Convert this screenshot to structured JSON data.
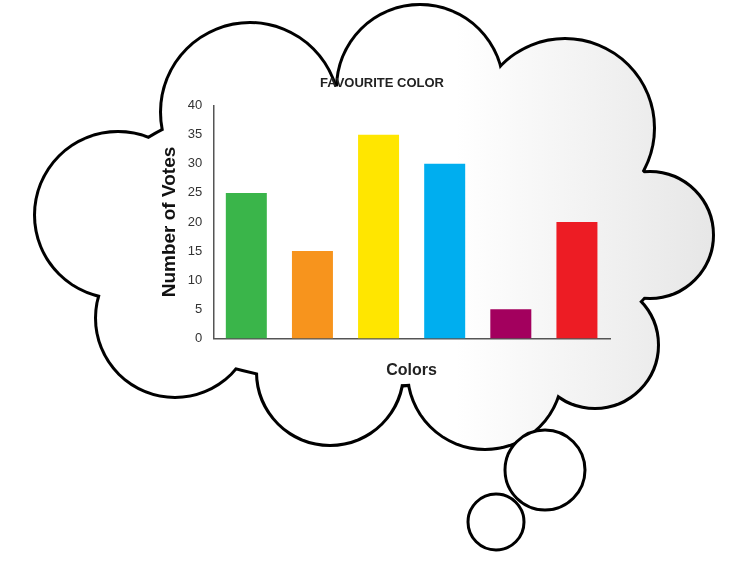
{
  "chart_data": {
    "type": "bar",
    "title": "FAVOURITE COLOR",
    "x_label": "Colors",
    "y_label": "Number of Votes",
    "categories": [
      null,
      null,
      null,
      null,
      null,
      null
    ],
    "values": [
      25,
      15,
      35,
      30,
      5,
      20
    ],
    "colors": [
      "#3ab54a",
      "#f7941d",
      "#ffe600",
      "#00aeef",
      "#a3005e",
      "#ed1c24"
    ],
    "ylim": [
      0,
      40
    ],
    "yticks": [
      0,
      5,
      10,
      15,
      20,
      25,
      30,
      35,
      40
    ],
    "grid": false
  }
}
